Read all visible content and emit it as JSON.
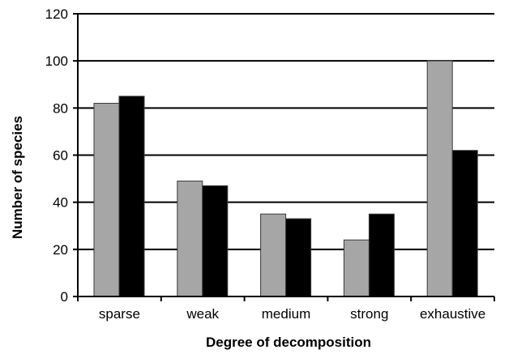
{
  "chart_data": {
    "type": "bar",
    "title": "",
    "xlabel": "Degree of decomposition",
    "ylabel": "Number of species",
    "categories": [
      "sparse",
      "weak",
      "medium",
      "strong",
      "exhaustive"
    ],
    "series": [
      {
        "values": [
          82,
          49,
          35,
          24,
          100
        ],
        "color": "#a6a6a6"
      },
      {
        "values": [
          85,
          47,
          33,
          35,
          62
        ],
        "color": "#000000"
      }
    ],
    "ylim": [
      0,
      120
    ],
    "yticks": [
      0,
      20,
      40,
      60,
      80,
      100,
      120
    ],
    "grid": true,
    "legend": "none"
  }
}
